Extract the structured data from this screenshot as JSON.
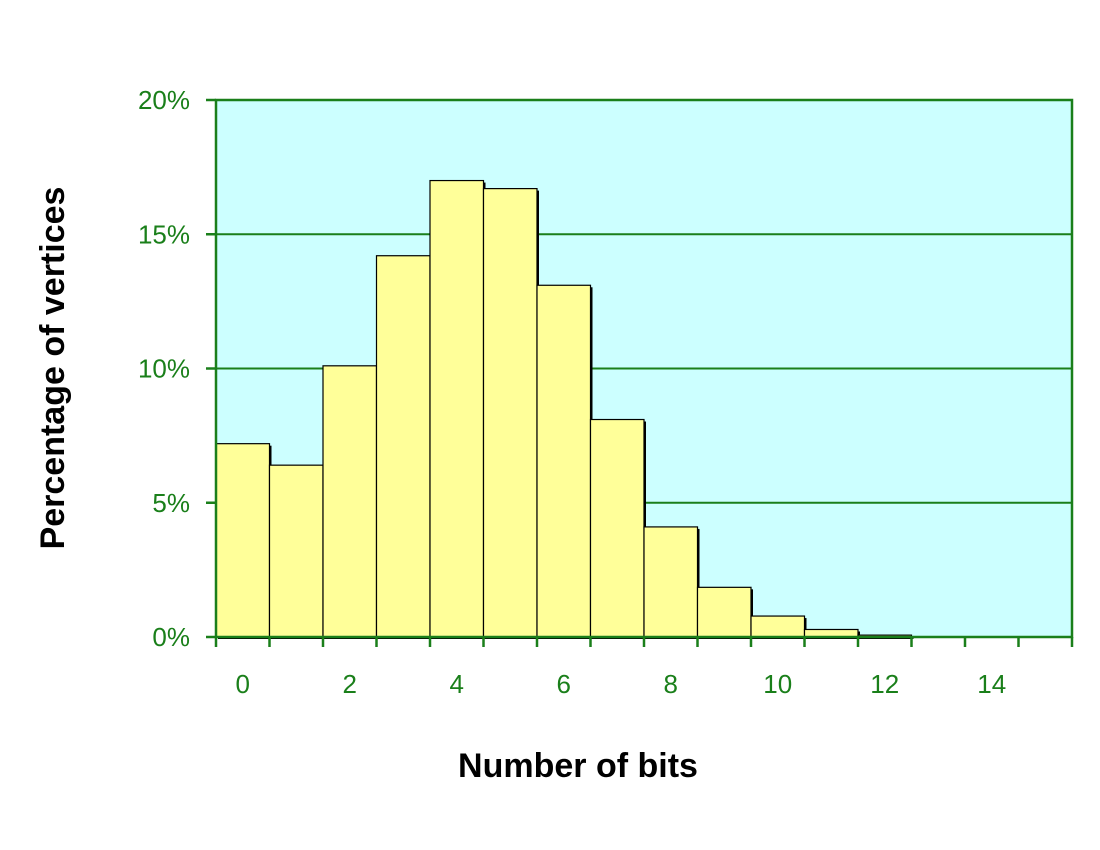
{
  "chart_data": {
    "type": "bar",
    "title": "",
    "xlabel": "Number of bits",
    "ylabel": "Percentage of vertices",
    "categories": [
      "0",
      "1",
      "2",
      "3",
      "4",
      "5",
      "6",
      "7",
      "8",
      "9",
      "10",
      "11",
      "12",
      "13",
      "14",
      "15"
    ],
    "values": [
      7.2,
      6.4,
      10.1,
      14.2,
      17.0,
      16.7,
      13.1,
      8.1,
      4.1,
      1.85,
      0.78,
      0.28,
      0.07,
      0,
      0,
      0
    ],
    "x_tick_labels": [
      "0",
      "2",
      "4",
      "6",
      "8",
      "10",
      "12",
      "14"
    ],
    "y_tick_labels": [
      "0%",
      "5%",
      "10%",
      "15%",
      "20%"
    ],
    "ylim": [
      0,
      20
    ],
    "grid": true,
    "colors": {
      "plot_background": "#ccffff",
      "bar_fill": "#ffff99",
      "bar_stroke": "#000000",
      "axis_and_grid": "#1a7f1a",
      "tick_label": "#1a7f1a"
    }
  }
}
